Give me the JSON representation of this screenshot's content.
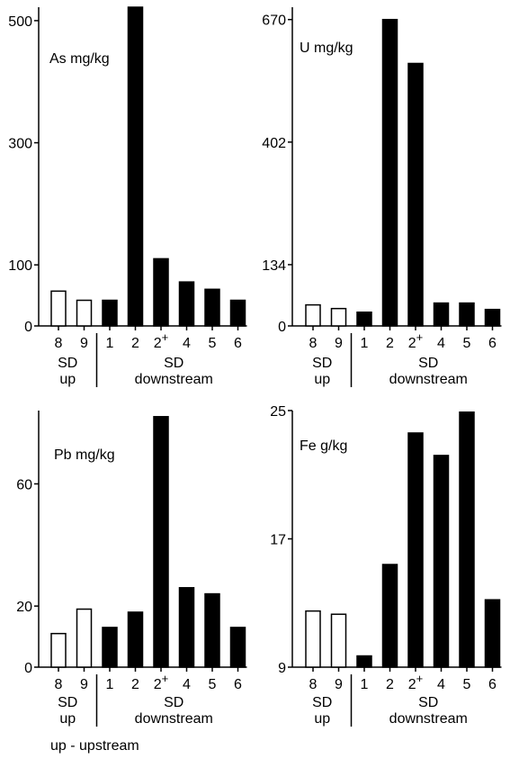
{
  "footnote": "up - upstream",
  "chart_data": [
    {
      "type": "bar",
      "title": "As mg/kg",
      "categories": [
        "8",
        "9",
        "1",
        "2",
        "2+",
        "4",
        "5",
        "6"
      ],
      "values": [
        57,
        42,
        42,
        522,
        110,
        72,
        60,
        42
      ],
      "ylim": [
        0,
        522
      ],
      "yticks": [
        0,
        100,
        300,
        500
      ],
      "bar_fill": [
        "open",
        "open",
        "filled",
        "filled",
        "filled",
        "filled",
        "filled",
        "filled"
      ],
      "group_labels": {
        "up_line1": "SD",
        "up_line2": "up",
        "down_line1": "SD",
        "down_line2": "downstream"
      }
    },
    {
      "type": "bar",
      "title": "U mg/kg",
      "categories": [
        "8",
        "9",
        "1",
        "2",
        "2+",
        "4",
        "5",
        "6"
      ],
      "values": [
        46,
        38,
        30,
        670,
        574,
        50,
        50,
        36
      ],
      "ylim": [
        0,
        697
      ],
      "yticks": [
        0,
        134,
        402,
        670
      ],
      "bar_fill": [
        "open",
        "open",
        "filled",
        "filled",
        "filled",
        "filled",
        "filled",
        "filled"
      ],
      "group_labels": {
        "up_line1": "SD",
        "up_line2": "up",
        "down_line1": "SD",
        "down_line2": "downstream"
      }
    },
    {
      "type": "bar",
      "title": "Pb mg/kg",
      "categories": [
        "8",
        "9",
        "1",
        "2",
        "2+",
        "4",
        "5",
        "6"
      ],
      "values": [
        11,
        19,
        13,
        18,
        82,
        26,
        24,
        13
      ],
      "ylim": [
        0,
        84
      ],
      "yticks": [
        0,
        20,
        60
      ],
      "bar_fill": [
        "open",
        "open",
        "filled",
        "filled",
        "filled",
        "filled",
        "filled",
        "filled"
      ],
      "group_labels": {
        "up_line1": "SD",
        "up_line2": "up",
        "down_line1": "SD",
        "down_line2": "downstream"
      }
    },
    {
      "type": "bar",
      "title": "Fe g/kg",
      "categories": [
        "8",
        "9",
        "1",
        "2",
        "2+",
        "4",
        "5",
        "6"
      ],
      "values": [
        12.5,
        12.3,
        9.7,
        15.4,
        23.6,
        22.2,
        24.9,
        13.2
      ],
      "ylim": [
        9,
        25
      ],
      "yticks": [
        9,
        17,
        25
      ],
      "bar_fill": [
        "open",
        "open",
        "filled",
        "filled",
        "filled",
        "filled",
        "filled",
        "filled"
      ],
      "group_labels": {
        "up_line1": "SD",
        "up_line2": "up",
        "down_line1": "SD",
        "down_line2": "downstream"
      }
    }
  ]
}
